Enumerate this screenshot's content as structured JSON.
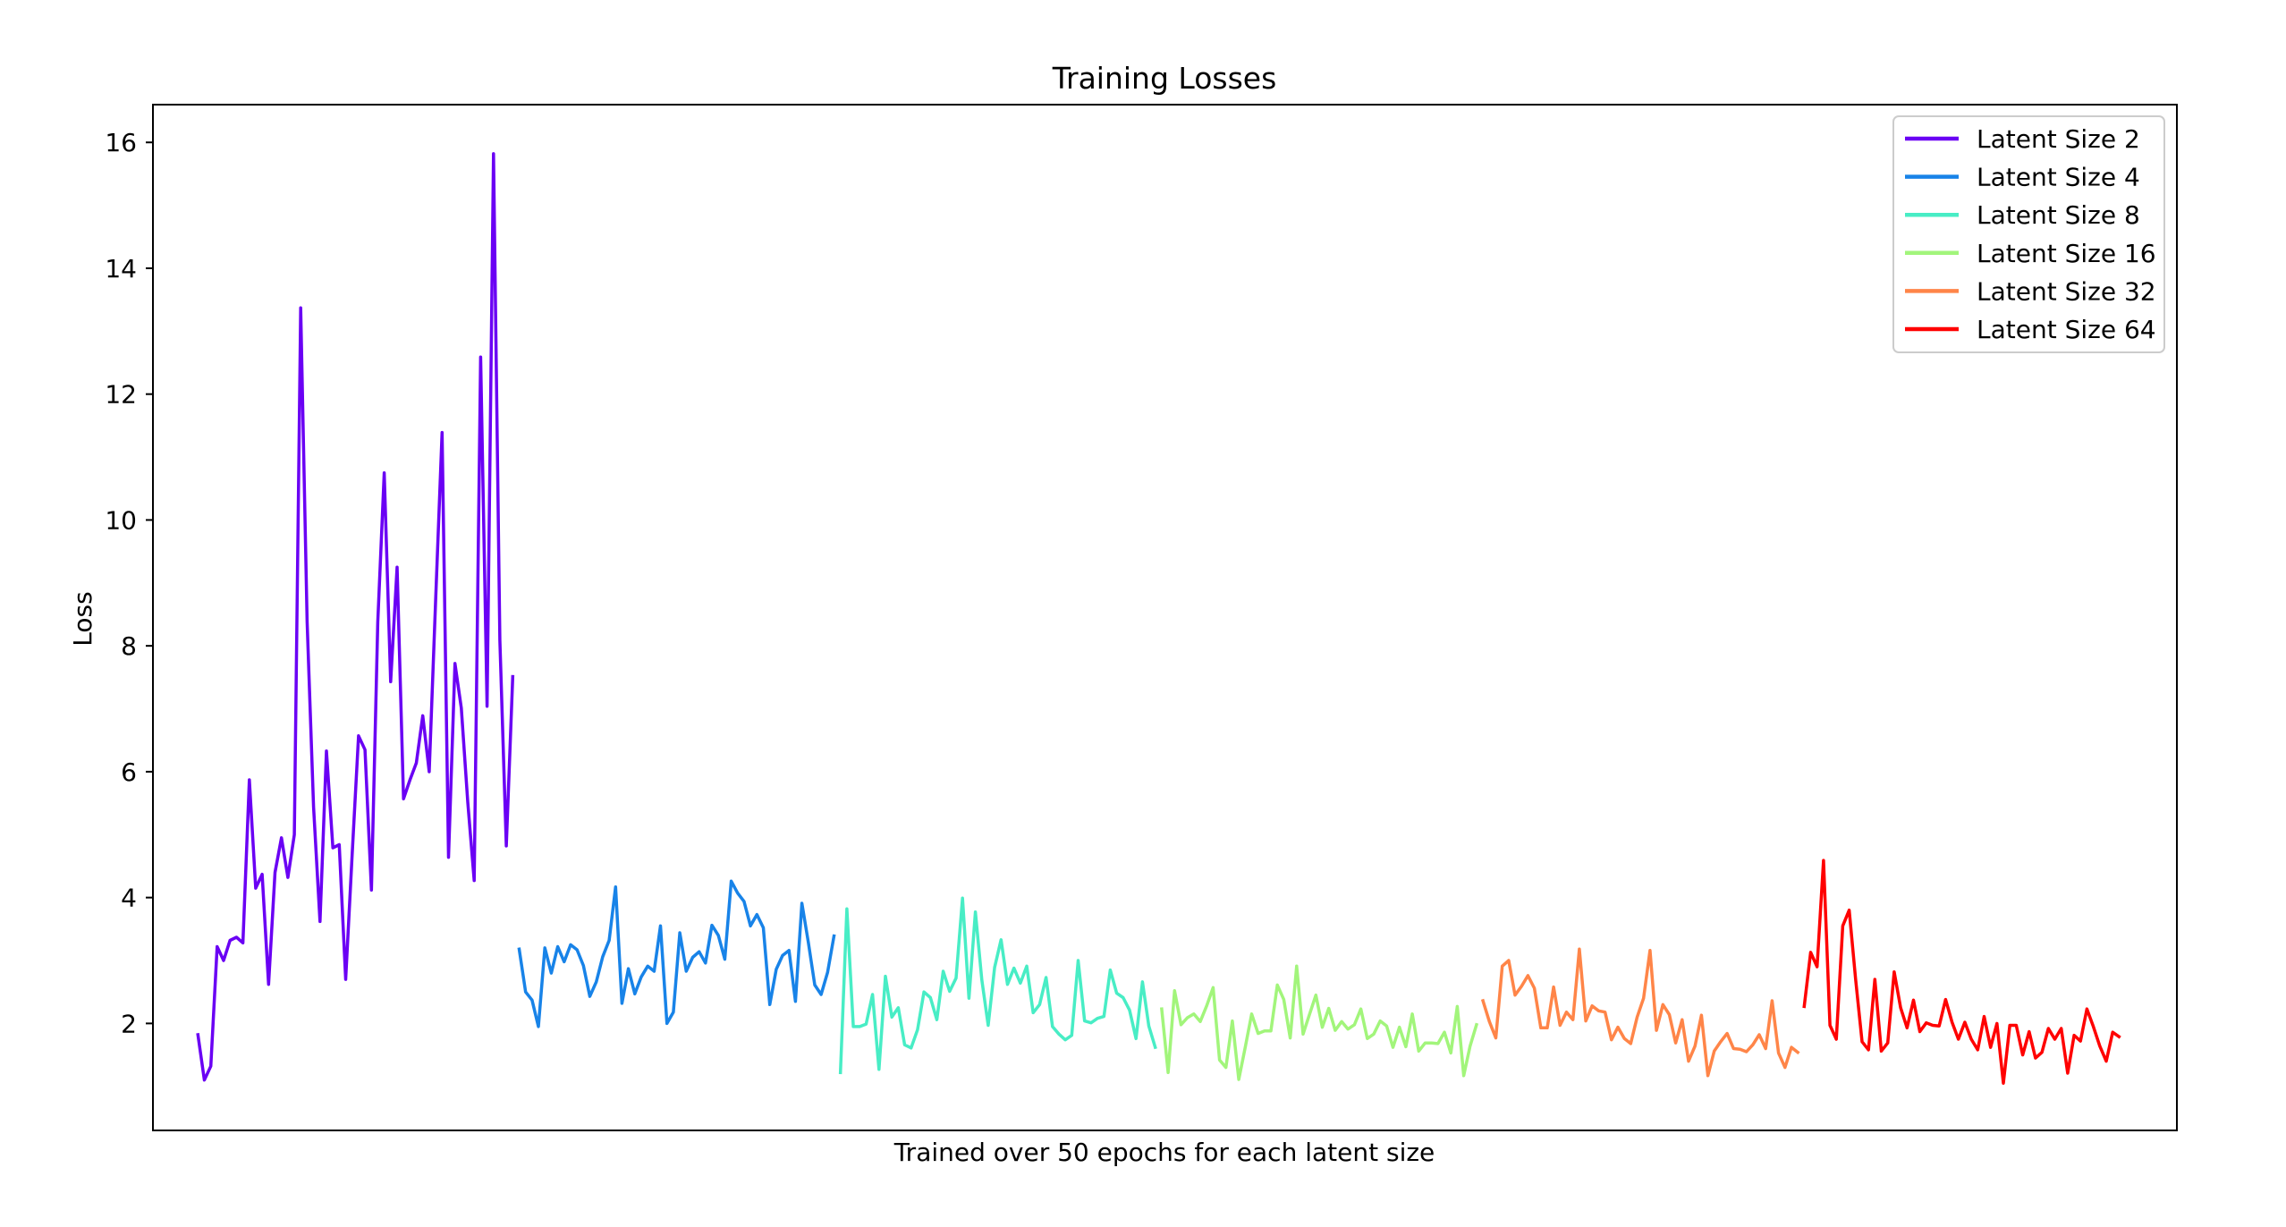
{
  "chart_data": {
    "type": "line",
    "title": "Training Losses",
    "xlabel": "Trained over 50 epochs for each latent size",
    "ylabel": "Loss",
    "xlim": [
      -7,
      308
    ],
    "ylim": [
      0.3,
      16.6
    ],
    "yticks": [
      2,
      4,
      6,
      8,
      10,
      12,
      14,
      16
    ],
    "xticks_visible": false,
    "grid": false,
    "legend_position": "top-right",
    "series": [
      {
        "name": "Latent Size 2",
        "color": "#6a00f4",
        "x_start": 0,
        "values": [
          1.82,
          1.1,
          1.32,
          3.22,
          3.0,
          3.32,
          3.37,
          3.28,
          5.87,
          4.15,
          4.37,
          2.62,
          4.4,
          4.95,
          4.32,
          5.0,
          13.37,
          8.38,
          5.44,
          3.62,
          6.33,
          4.79,
          4.84,
          2.7,
          4.67,
          6.57,
          6.35,
          4.12,
          8.38,
          10.75,
          7.43,
          9.25,
          5.57,
          5.87,
          6.14,
          6.89,
          6.0,
          8.73,
          11.39,
          4.64,
          7.72,
          7.01,
          5.52,
          4.27,
          12.59,
          7.04,
          15.82,
          8.09,
          4.82,
          7.51
        ]
      },
      {
        "name": "Latent Size 4",
        "color": "#1883e8",
        "x_start": 50,
        "values": [
          3.18,
          2.5,
          2.37,
          1.95,
          3.2,
          2.8,
          3.22,
          2.98,
          3.25,
          3.17,
          2.92,
          2.43,
          2.66,
          3.06,
          3.32,
          4.17,
          2.32,
          2.87,
          2.47,
          2.74,
          2.91,
          2.83,
          3.55,
          2.0,
          2.18,
          3.44,
          2.83,
          3.05,
          3.14,
          2.96,
          3.56,
          3.4,
          3.02,
          4.26,
          4.07,
          3.94,
          3.55,
          3.73,
          3.52,
          2.3,
          2.86,
          3.08,
          3.16,
          2.35,
          3.91,
          3.29,
          2.61,
          2.46,
          2.81,
          3.39
        ]
      },
      {
        "name": "Latent Size 8",
        "color": "#48edc5",
        "x_start": 100,
        "values": [
          1.22,
          3.82,
          1.95,
          1.95,
          1.99,
          2.46,
          1.27,
          2.75,
          2.1,
          2.25,
          1.66,
          1.61,
          1.9,
          2.5,
          2.41,
          2.06,
          2.83,
          2.51,
          2.72,
          3.99,
          2.4,
          3.77,
          2.69,
          1.97,
          2.89,
          3.33,
          2.62,
          2.88,
          2.64,
          2.91,
          2.17,
          2.3,
          2.73,
          1.95,
          1.83,
          1.74,
          1.81,
          3.0,
          2.04,
          2.01,
          2.08,
          2.11,
          2.85,
          2.48,
          2.41,
          2.21,
          1.76,
          2.66,
          1.96,
          1.62
        ]
      },
      {
        "name": "Latent Size 16",
        "color": "#a2f57b",
        "x_start": 150,
        "values": [
          2.23,
          1.22,
          2.52,
          1.98,
          2.09,
          2.15,
          2.03,
          2.28,
          2.57,
          1.42,
          1.3,
          2.04,
          1.11,
          1.62,
          2.15,
          1.84,
          1.88,
          1.88,
          2.61,
          2.38,
          1.77,
          2.91,
          1.83,
          2.14,
          2.45,
          1.94,
          2.24,
          1.89,
          2.03,
          1.91,
          1.98,
          2.23,
          1.76,
          1.83,
          2.04,
          1.96,
          1.62,
          1.94,
          1.63,
          2.15,
          1.56,
          1.69,
          1.69,
          1.68,
          1.86,
          1.53,
          2.27,
          1.17,
          1.64,
          1.98
        ]
      },
      {
        "name": "Latent Size 32",
        "color": "#ff8548",
        "x_start": 200,
        "values": [
          2.36,
          2.03,
          1.77,
          2.91,
          3.0,
          2.45,
          2.59,
          2.76,
          2.56,
          1.93,
          1.93,
          2.58,
          1.97,
          2.18,
          2.06,
          3.18,
          2.04,
          2.28,
          2.2,
          2.18,
          1.74,
          1.94,
          1.76,
          1.68,
          2.1,
          2.4,
          3.16,
          1.89,
          2.3,
          2.14,
          1.69,
          2.06,
          1.4,
          1.64,
          2.13,
          1.17,
          1.56,
          1.71,
          1.84,
          1.6,
          1.59,
          1.55,
          1.66,
          1.82,
          1.6,
          2.36,
          1.53,
          1.3,
          1.62,
          1.54
        ]
      },
      {
        "name": "Latent Size 64",
        "color": "#ff0000",
        "x_start": 250,
        "values": [
          2.27,
          3.13,
          2.9,
          4.59,
          1.97,
          1.75,
          3.55,
          3.8,
          2.7,
          1.71,
          1.58,
          2.7,
          1.56,
          1.69,
          2.82,
          2.25,
          1.93,
          2.37,
          1.87,
          2.01,
          1.97,
          1.96,
          2.38,
          2.02,
          1.75,
          2.02,
          1.75,
          1.58,
          2.11,
          1.62,
          2.0,
          1.05,
          1.97,
          1.97,
          1.5,
          1.87,
          1.45,
          1.54,
          1.92,
          1.75,
          1.92,
          1.21,
          1.81,
          1.72,
          2.23,
          1.95,
          1.64,
          1.4,
          1.86,
          1.79
        ]
      }
    ]
  }
}
